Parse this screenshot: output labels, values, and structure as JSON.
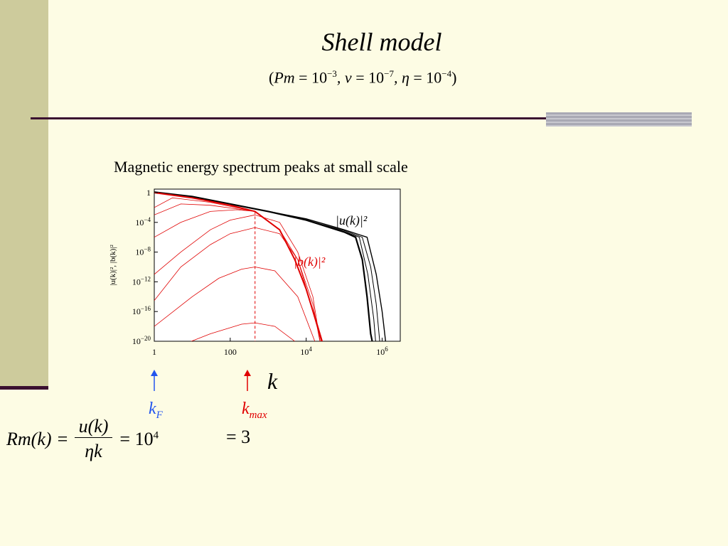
{
  "slide": {
    "title": "Shell model",
    "params": {
      "open": "(",
      "pm_sym": "Pm",
      "eq1": " = 10",
      "pm_exp": "−3",
      "nu_sym": ", ν",
      "eq2": " = 10",
      "nu_exp": "−7",
      "eta_sym": ", η",
      "eq3": " = 10",
      "eta_exp": "−4",
      "close": ")"
    },
    "caption": "Magnetic energy spectrum peaks at small scale",
    "k_axis_label": "k",
    "kF": {
      "base": "k",
      "sub": "F"
    },
    "kmax": {
      "base": "k",
      "sub": "max"
    },
    "equation": {
      "lhs": "Rm(k) =",
      "numerator": "u(k)",
      "denominator": "ηk",
      "rhs1": "= 10",
      "rhs1_exp": "4",
      "rhs2": "= 3"
    },
    "colors": {
      "background": "#fdfce4",
      "sidebar": "#cdcb9c",
      "rule": "#3a1030",
      "kF": "#2255ee",
      "kmax": "#e00000"
    }
  },
  "chart_data": {
    "type": "line",
    "xscale": "log",
    "yscale": "log",
    "xlim": [
      1,
      3000000
    ],
    "ylim": [
      1e-20,
      3
    ],
    "x_ticks": [
      {
        "value": 1,
        "label": "1"
      },
      {
        "value": 100,
        "label": "100"
      },
      {
        "value": 10000,
        "label_base": "10",
        "label_exp": "4"
      },
      {
        "value": 1000000,
        "label_base": "10",
        "label_exp": "6"
      }
    ],
    "y_ticks": [
      {
        "value": 1,
        "label": "1"
      },
      {
        "value": 0.0001,
        "label_base": "10",
        "label_exp": "−4"
      },
      {
        "value": 1e-08,
        "label_base": "10",
        "label_exp": "−8"
      },
      {
        "value": 1e-12,
        "label_base": "10",
        "label_exp": "−12"
      },
      {
        "value": 1e-16,
        "label_base": "10",
        "label_exp": "−16"
      },
      {
        "value": 1e-20,
        "label_base": "10",
        "label_exp": "−20"
      }
    ],
    "ylabel": "|u(k)|², |b(k)|²",
    "annotations": [
      {
        "text": "|u(k)|²",
        "color": "#000000"
      },
      {
        "text": "|b(k)|²",
        "color": "#e00000"
      }
    ],
    "kmax_line_x": 450,
    "series": [
      {
        "color": "#000000",
        "width": 2.2,
        "points": [
          [
            1,
            1.2
          ],
          [
            10,
            0.3
          ],
          [
            100,
            0.03
          ],
          [
            1000,
            0.003
          ],
          [
            10000,
            0.0002
          ],
          [
            100000,
            5e-06
          ],
          [
            200000,
            1e-06
          ],
          [
            300000,
            1e-09
          ],
          [
            400000,
            1e-14
          ],
          [
            500000,
            1e-19
          ],
          [
            600000,
            1e-21
          ]
        ]
      },
      {
        "color": "#000000",
        "width": 1,
        "points": [
          [
            1,
            1.2
          ],
          [
            10,
            0.3
          ],
          [
            100,
            0.03
          ],
          [
            1000,
            0.003
          ],
          [
            10000,
            0.0002
          ],
          [
            100000,
            8e-06
          ],
          [
            300000,
            1e-06
          ],
          [
            500000,
            1e-10
          ],
          [
            700000,
            1e-15
          ],
          [
            900000,
            1e-21
          ]
        ]
      },
      {
        "color": "#000000",
        "width": 1,
        "points": [
          [
            1,
            1.2
          ],
          [
            10,
            0.3
          ],
          [
            100,
            0.03
          ],
          [
            1000,
            0.003
          ],
          [
            10000,
            0.0002
          ],
          [
            100000,
            6e-06
          ],
          [
            250000,
            1e-06
          ],
          [
            420000,
            1e-11
          ],
          [
            600000,
            1e-17
          ],
          [
            700000,
            1e-21
          ]
        ]
      },
      {
        "color": "#000000",
        "width": 1.4,
        "points": [
          [
            1,
            1.2
          ],
          [
            10,
            0.3
          ],
          [
            100,
            0.03
          ],
          [
            1000,
            0.003
          ],
          [
            10000,
            0.0003
          ],
          [
            100000,
            1e-05
          ],
          [
            400000,
            1e-06
          ],
          [
            700000,
            1e-11
          ],
          [
            1000000,
            1e-16
          ],
          [
            1300000,
            1e-21
          ]
        ]
      },
      {
        "color": "#e00000",
        "width": 2,
        "points": [
          [
            1,
            1
          ],
          [
            10,
            0.2
          ],
          [
            100,
            0.02
          ],
          [
            450,
            0.003
          ],
          [
            2000,
            1e-05
          ],
          [
            5000,
            1e-09
          ],
          [
            10000,
            1e-13
          ],
          [
            20000,
            1e-18
          ],
          [
            30000,
            1e-21
          ]
        ]
      },
      {
        "color": "#e00000",
        "width": 0.8,
        "points": [
          [
            1,
            3e-15
          ],
          [
            5,
            1e-10
          ],
          [
            30,
            1e-07
          ],
          [
            100,
            3e-06
          ],
          [
            450,
            2e-05
          ],
          [
            2000,
            3e-06
          ],
          [
            6000,
            1e-09
          ],
          [
            15000,
            1e-15
          ],
          [
            25000,
            1e-21
          ]
        ]
      },
      {
        "color": "#e00000",
        "width": 0.8,
        "points": [
          [
            1,
            1e-18
          ],
          [
            10,
            1e-14
          ],
          [
            50,
            3e-12
          ],
          [
            200,
            5e-11
          ],
          [
            450,
            1e-10
          ],
          [
            1500,
            3e-11
          ],
          [
            6000,
            1e-14
          ],
          [
            20000,
            1e-21
          ]
        ]
      },
      {
        "color": "#e00000",
        "width": 0.8,
        "points": [
          [
            3,
            1e-21
          ],
          [
            30,
            1e-19
          ],
          [
            200,
            2e-18
          ],
          [
            450,
            3e-18
          ],
          [
            1500,
            1e-18
          ],
          [
            5000,
            1e-20
          ],
          [
            8000,
            1e-21
          ]
        ]
      },
      {
        "color": "#e00000",
        "width": 0.8,
        "points": [
          [
            1,
            1e-11
          ],
          [
            5,
            1e-08
          ],
          [
            30,
            1e-05
          ],
          [
            100,
            0.0002
          ],
          [
            450,
            0.001
          ],
          [
            2000,
            0.0001
          ],
          [
            6000,
            1e-08
          ],
          [
            15000,
            1e-14
          ],
          [
            25000,
            1e-21
          ]
        ]
      },
      {
        "color": "#e00000",
        "width": 0.8,
        "points": [
          [
            1,
            1e-06
          ],
          [
            5,
            0.0001
          ],
          [
            30,
            0.003
          ],
          [
            150,
            0.005
          ],
          [
            450,
            0.003
          ],
          [
            2000,
            1e-05
          ],
          [
            6000,
            1e-09
          ],
          [
            20000,
            1e-18
          ],
          [
            28000,
            1e-21
          ]
        ]
      },
      {
        "color": "#e00000",
        "width": 0.8,
        "points": [
          [
            1,
            0.001
          ],
          [
            5,
            0.03
          ],
          [
            30,
            0.02
          ],
          [
            450,
            0.003
          ],
          [
            2000,
            1e-05
          ],
          [
            5000,
            1e-09
          ],
          [
            10000,
            1e-13
          ],
          [
            20000,
            1e-18
          ],
          [
            30000,
            1e-21
          ]
        ]
      },
      {
        "color": "#e00000",
        "width": 0.8,
        "points": [
          [
            1,
            0.01
          ],
          [
            3,
            0.2
          ],
          [
            30,
            0.05
          ],
          [
            450,
            0.003
          ],
          [
            2000,
            1e-05
          ],
          [
            5000,
            1e-09
          ],
          [
            10000,
            1e-13
          ],
          [
            25000,
            1e-20
          ],
          [
            30000,
            1e-21
          ]
        ]
      }
    ]
  }
}
